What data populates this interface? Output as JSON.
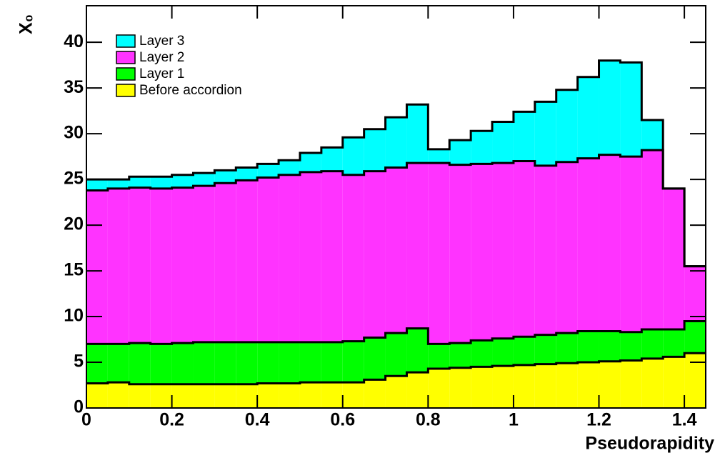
{
  "chart_data": {
    "type": "histogram",
    "x_label": "Pseudorapidity",
    "y_label": "X₀",
    "bins": [
      0,
      0.05,
      0.1,
      0.15,
      0.2,
      0.25,
      0.3,
      0.35,
      0.4,
      0.45,
      0.5,
      0.55,
      0.6,
      0.65,
      0.7,
      0.75,
      0.8,
      0.85,
      0.9,
      0.95,
      1,
      1.05,
      1.1,
      1.15,
      1.2,
      1.25,
      1.3,
      1.35,
      1.4,
      1.45
    ],
    "stacked": true,
    "series": [
      {
        "name": "Before accordion",
        "color": "#ffff00",
        "values": [
          2.7,
          2.8,
          2.6,
          2.6,
          2.6,
          2.6,
          2.6,
          2.6,
          2.7,
          2.7,
          2.8,
          2.8,
          2.8,
          3.1,
          3.5,
          3.9,
          4.3,
          4.4,
          4.5,
          4.6,
          4.7,
          4.8,
          4.9,
          5.0,
          5.1,
          5.2,
          5.4,
          5.6,
          6.0
        ]
      },
      {
        "name": "Layer 1",
        "color": "#00ff00",
        "values": [
          4.3,
          4.2,
          4.5,
          4.4,
          4.5,
          4.6,
          4.6,
          4.6,
          4.5,
          4.5,
          4.4,
          4.4,
          4.5,
          4.6,
          4.7,
          4.8,
          2.7,
          2.7,
          2.9,
          3.0,
          3.1,
          3.2,
          3.3,
          3.4,
          3.3,
          3.1,
          3.2,
          3.0,
          3.5
        ]
      },
      {
        "name": "Layer 2",
        "color": "#ff33ff",
        "values": [
          16.8,
          17.0,
          17.0,
          17.0,
          17.0,
          17.1,
          17.4,
          17.7,
          18.0,
          18.3,
          18.6,
          18.7,
          18.2,
          18.2,
          18.1,
          18.1,
          19.8,
          19.5,
          19.3,
          19.2,
          19.2,
          18.5,
          18.7,
          18.9,
          19.3,
          19.2,
          19.6,
          15.4,
          6.0
        ]
      },
      {
        "name": "Layer 3",
        "color": "#00ffff",
        "values": [
          1.2,
          1.0,
          1.2,
          1.3,
          1.4,
          1.4,
          1.4,
          1.4,
          1.5,
          1.6,
          2.1,
          2.6,
          4.1,
          4.6,
          5.5,
          6.4,
          1.5,
          2.7,
          3.6,
          4.5,
          5.4,
          7.0,
          7.9,
          8.9,
          10.3,
          10.3,
          3.3,
          0,
          0
        ]
      }
    ],
    "xlim": [
      0,
      1.45
    ],
    "ylim": [
      0,
      44
    ],
    "xticks": [
      0,
      0.2,
      0.4,
      0.6,
      0.8,
      1,
      1.2,
      1.4
    ],
    "yticks": [
      0,
      5,
      10,
      15,
      20,
      25,
      30,
      35,
      40
    ],
    "legend": "upper left"
  }
}
